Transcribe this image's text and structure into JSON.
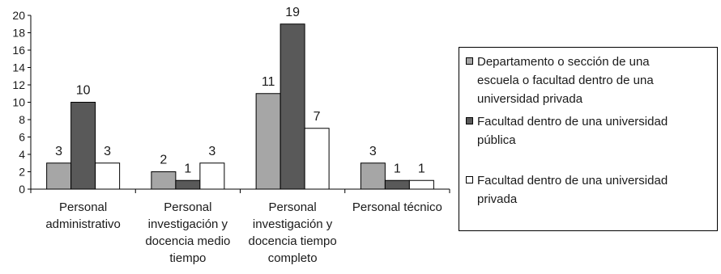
{
  "chart_data": {
    "type": "bar",
    "categories": [
      [
        "Personal",
        "administrativo"
      ],
      [
        "Personal",
        "investigación y",
        "docencia medio",
        "tiempo"
      ],
      [
        "Personal",
        "investigación y",
        "docencia tiempo",
        "completo"
      ],
      [
        "Personal técnico"
      ]
    ],
    "series": [
      {
        "name": "Departamento o sección de una escuela o facultad dentro de una universidad privada",
        "values": [
          3,
          2,
          11,
          3
        ],
        "color": "#a6a6a6"
      },
      {
        "name": "Facultad dentro de una universidad pública",
        "values": [
          10,
          1,
          19,
          1
        ],
        "color": "#595959"
      },
      {
        "name": "Facultad dentro de una universidad privada",
        "values": [
          3,
          3,
          7,
          1
        ],
        "color": "#ffffff"
      }
    ],
    "ylim": [
      0,
      20
    ],
    "yticks": [
      0,
      2,
      4,
      6,
      8,
      10,
      12,
      14,
      16,
      18,
      20
    ],
    "data_labels": true,
    "grid": false,
    "legend_position": "right"
  },
  "legend": {
    "items": [
      [
        "Departamento o sección de una",
        "escuela o facultad dentro de una",
        "universidad privada"
      ],
      [
        "Facultad dentro de una universidad",
        "pública"
      ],
      [
        "Facultad dentro de una universidad",
        "privada"
      ]
    ]
  }
}
